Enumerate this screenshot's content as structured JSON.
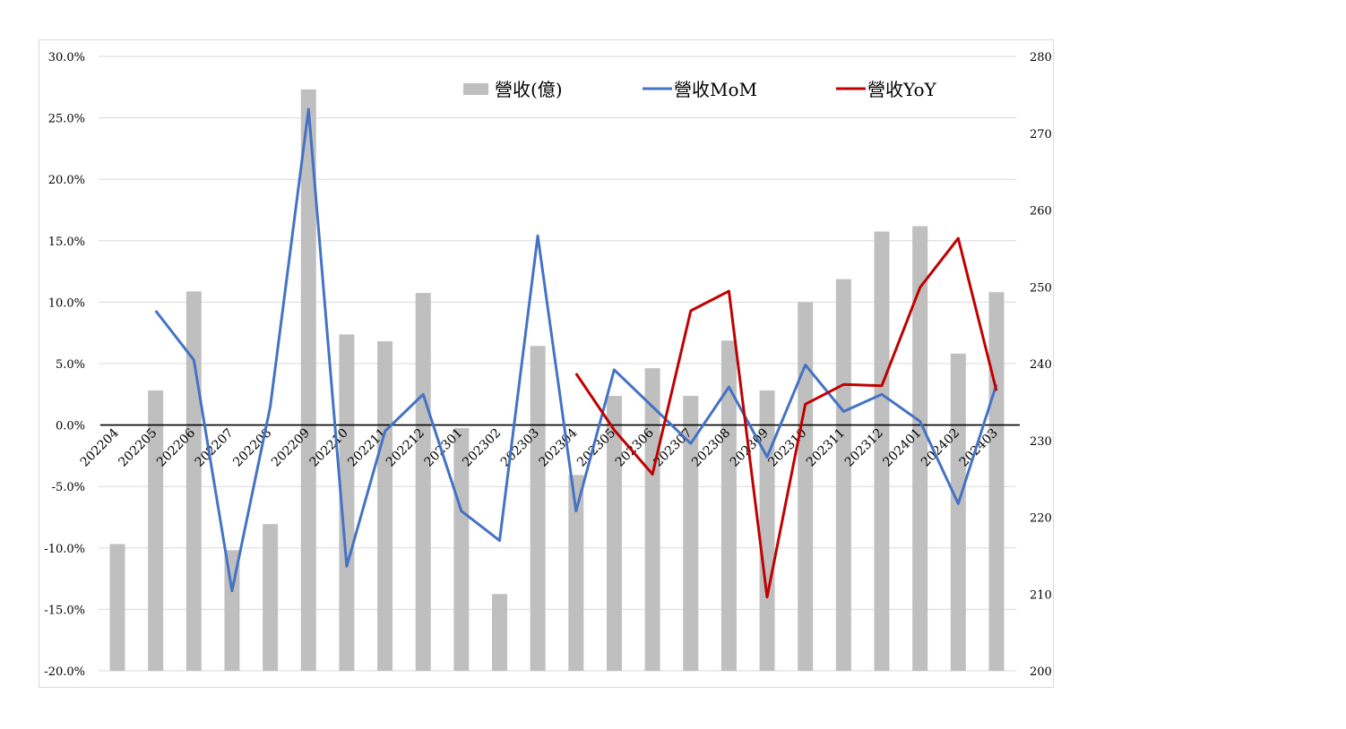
{
  "chart_data": {
    "type": "bar+line",
    "categories": [
      "202204",
      "202205",
      "202206",
      "202207",
      "202208",
      "202209",
      "202210",
      "202211",
      "202212",
      "202301",
      "202302",
      "202303",
      "202304",
      "202305",
      "202306",
      "202307",
      "202308",
      "202309",
      "202310",
      "202311",
      "202312",
      "202401",
      "202402",
      "202403"
    ],
    "series": [
      {
        "name": "營收(億)",
        "type": "bar",
        "axis": "right",
        "color": "#bfbfbf",
        "values": [
          216.5,
          236.5,
          249.4,
          215.7,
          219.1,
          275.7,
          243.8,
          242.9,
          249.2,
          231.6,
          210.0,
          242.3,
          225.5,
          235.8,
          239.4,
          235.8,
          243.0,
          236.5,
          248.0,
          251.0,
          257.2,
          257.9,
          241.3,
          249.3
        ]
      },
      {
        "name": "營收MoM",
        "type": "line",
        "axis": "left",
        "color": "#4472c4",
        "values": [
          null,
          9.3,
          5.3,
          -13.5,
          1.5,
          25.7,
          -11.5,
          -0.5,
          2.5,
          -7.0,
          -9.4,
          15.4,
          -7.0,
          4.5,
          1.5,
          -1.5,
          3.1,
          -2.6,
          4.9,
          1.1,
          2.5,
          0.3,
          -6.4,
          3.3
        ]
      },
      {
        "name": "營收YoY",
        "type": "line",
        "axis": "left",
        "color": "#c00000",
        "values": [
          null,
          null,
          null,
          null,
          null,
          null,
          null,
          null,
          null,
          null,
          null,
          null,
          4.2,
          -0.4,
          -4.0,
          9.3,
          10.9,
          -14.0,
          1.7,
          3.3,
          3.2,
          11.2,
          15.2,
          2.8
        ]
      }
    ],
    "y_left": {
      "min": -20,
      "max": 30,
      "step": 5,
      "tick_labels": [
        "-20.0%",
        "-15.0%",
        "-10.0%",
        "-5.0%",
        "0.0%",
        "5.0%",
        "10.0%",
        "15.0%",
        "20.0%",
        "25.0%",
        "30.0%"
      ]
    },
    "y_right": {
      "min": 200,
      "max": 280,
      "step": 10,
      "tick_labels": [
        "200",
        "210",
        "220",
        "230",
        "240",
        "250",
        "260",
        "270",
        "280"
      ]
    },
    "grid": true,
    "legend_placement": "top-center",
    "title": "",
    "xlabel": "",
    "ylabel": ""
  }
}
